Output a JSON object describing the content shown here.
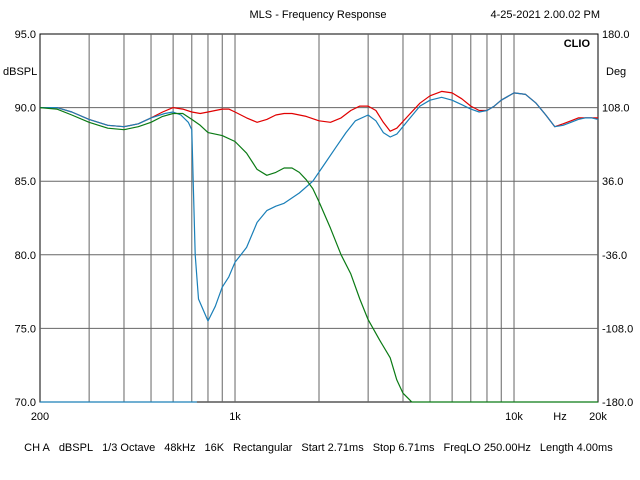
{
  "header": {
    "title": "MLS - Frequency Response",
    "datetime": "4-25-2021 2.00.02 PM",
    "brand": "CLIO"
  },
  "footer": {
    "channel": "CH A",
    "unit": "dBSPL",
    "smoothing": "1/3 Octave",
    "sample_rate": "48kHz",
    "size": "16K",
    "window": "Rectangular",
    "start": "Start 2.71ms",
    "stop": "Stop 6.71ms",
    "freqlo": "FreqLO 250.00Hz",
    "length": "Length 4.00ms"
  },
  "chart_data": {
    "type": "line",
    "xscale": "log",
    "xlim": [
      200,
      20000
    ],
    "ylim": [
      70,
      95
    ],
    "y2lim": [
      -180,
      180
    ],
    "ylabel": "dBSPL",
    "y2label": "Deg",
    "xlabel": "Hz",
    "x_tick_labels": [
      {
        "value": 200,
        "label": "200"
      },
      {
        "value": 1000,
        "label": "1k"
      },
      {
        "value": 10000,
        "label": "10k"
      },
      {
        "value": 20000,
        "label": "20k"
      }
    ],
    "y_tick_labels": [
      "70.0",
      "75.0",
      "80.0",
      "85.0",
      "90.0",
      "95.0"
    ],
    "y2_tick_labels": [
      "-180.0",
      "-108.0",
      "-36.0",
      "36.0",
      "108.0",
      "180.0"
    ],
    "grid": true,
    "series": [
      {
        "color": "#e00000",
        "points": [
          [
            200,
            90
          ],
          [
            230,
            90
          ],
          [
            260,
            89.7
          ],
          [
            300,
            89.2
          ],
          [
            350,
            88.8
          ],
          [
            400,
            88.7
          ],
          [
            450,
            88.9
          ],
          [
            500,
            89.3
          ],
          [
            550,
            89.7
          ],
          [
            600,
            90
          ],
          [
            650,
            89.9
          ],
          [
            700,
            89.7
          ],
          [
            750,
            89.6
          ],
          [
            800,
            89.7
          ],
          [
            850,
            89.8
          ],
          [
            900,
            89.9
          ],
          [
            950,
            89.9
          ],
          [
            1000,
            89.7
          ],
          [
            1100,
            89.3
          ],
          [
            1200,
            89
          ],
          [
            1300,
            89.2
          ],
          [
            1400,
            89.5
          ],
          [
            1500,
            89.6
          ],
          [
            1600,
            89.6
          ],
          [
            1800,
            89.4
          ],
          [
            2000,
            89.1
          ],
          [
            2200,
            89
          ],
          [
            2400,
            89.3
          ],
          [
            2600,
            89.8
          ],
          [
            2800,
            90.1
          ],
          [
            3000,
            90.1
          ],
          [
            3200,
            89.8
          ],
          [
            3400,
            89
          ],
          [
            3600,
            88.4
          ],
          [
            3800,
            88.6
          ],
          [
            4200,
            89.5
          ],
          [
            4600,
            90.3
          ],
          [
            5000,
            90.8
          ],
          [
            5500,
            91.1
          ],
          [
            6000,
            91
          ],
          [
            6500,
            90.6
          ],
          [
            7000,
            90.1
          ],
          [
            7500,
            89.8
          ],
          [
            8000,
            89.8
          ],
          [
            8500,
            90.1
          ],
          [
            9000,
            90.5
          ],
          [
            10000,
            91
          ],
          [
            11000,
            90.9
          ],
          [
            12000,
            90.3
          ],
          [
            13000,
            89.5
          ],
          [
            14000,
            88.7
          ],
          [
            15000,
            88.9
          ],
          [
            16000,
            89.1
          ],
          [
            17000,
            89.3
          ],
          [
            18000,
            89.3
          ],
          [
            19000,
            89.3
          ],
          [
            20000,
            89.3
          ]
        ]
      },
      {
        "color": "#1a7fb8",
        "points": [
          [
            200,
            90
          ],
          [
            230,
            90
          ],
          [
            260,
            89.7
          ],
          [
            300,
            89.2
          ],
          [
            350,
            88.8
          ],
          [
            400,
            88.7
          ],
          [
            450,
            88.9
          ],
          [
            500,
            89.3
          ],
          [
            560,
            89.6
          ],
          [
            600,
            89.7
          ],
          [
            640,
            89.5
          ],
          [
            680,
            89
          ],
          [
            700,
            88.5
          ],
          [
            720,
            80
          ],
          [
            740,
            77
          ],
          [
            800,
            75.5
          ],
          [
            850,
            76.5
          ],
          [
            900,
            77.8
          ],
          [
            950,
            78.5
          ],
          [
            1000,
            79.5
          ],
          [
            1050,
            80
          ],
          [
            1100,
            80.5
          ],
          [
            1200,
            82.2
          ],
          [
            1300,
            83
          ],
          [
            1400,
            83.3
          ],
          [
            1500,
            83.5
          ],
          [
            1700,
            84.2
          ],
          [
            1900,
            85
          ],
          [
            2100,
            86.2
          ],
          [
            2300,
            87.3
          ],
          [
            2500,
            88.3
          ],
          [
            2700,
            89.1
          ],
          [
            3000,
            89.5
          ],
          [
            3200,
            89.1
          ],
          [
            3400,
            88.3
          ],
          [
            3600,
            88
          ],
          [
            3800,
            88.2
          ],
          [
            4200,
            89.2
          ],
          [
            4600,
            90.1
          ],
          [
            5000,
            90.5
          ],
          [
            5500,
            90.7
          ],
          [
            6000,
            90.5
          ],
          [
            6500,
            90.2
          ],
          [
            7000,
            89.9
          ],
          [
            7500,
            89.7
          ],
          [
            8000,
            89.8
          ],
          [
            8500,
            90.1
          ],
          [
            9000,
            90.5
          ],
          [
            10000,
            91
          ],
          [
            11000,
            90.9
          ],
          [
            12000,
            90.3
          ],
          [
            13000,
            89.5
          ],
          [
            14000,
            88.7
          ],
          [
            15000,
            88.8
          ],
          [
            16000,
            89
          ],
          [
            17000,
            89.2
          ],
          [
            18000,
            89.3
          ],
          [
            19000,
            89.3
          ],
          [
            20000,
            89.2
          ]
        ]
      },
      {
        "color": "#0a7a14",
        "points": [
          [
            200,
            90
          ],
          [
            230,
            89.9
          ],
          [
            260,
            89.5
          ],
          [
            300,
            89
          ],
          [
            350,
            88.6
          ],
          [
            400,
            88.5
          ],
          [
            450,
            88.7
          ],
          [
            500,
            89
          ],
          [
            550,
            89.4
          ],
          [
            600,
            89.6
          ],
          [
            650,
            89.6
          ],
          [
            700,
            89.2
          ],
          [
            750,
            88.8
          ],
          [
            800,
            88.3
          ],
          [
            900,
            88.1
          ],
          [
            1000,
            87.7
          ],
          [
            1100,
            86.9
          ],
          [
            1200,
            85.8
          ],
          [
            1300,
            85.4
          ],
          [
            1400,
            85.6
          ],
          [
            1500,
            85.9
          ],
          [
            1600,
            85.9
          ],
          [
            1700,
            85.6
          ],
          [
            1800,
            85.1
          ],
          [
            1900,
            84.5
          ],
          [
            2000,
            83.6
          ],
          [
            2200,
            81.8
          ],
          [
            2400,
            80
          ],
          [
            2600,
            78.7
          ],
          [
            2800,
            77
          ],
          [
            3000,
            75.6
          ],
          [
            3300,
            74.2
          ],
          [
            3600,
            73
          ],
          [
            3800,
            71.5
          ],
          [
            4000,
            70.6
          ],
          [
            4200,
            70.2
          ],
          [
            4300,
            70
          ]
        ]
      },
      {
        "color": "#1a7fb8",
        "points": [
          [
            200,
            70
          ],
          [
            700,
            70
          ],
          [
            730,
            70
          ]
        ]
      },
      {
        "color": "#0a7a14",
        "points": [
          [
            4300,
            70
          ],
          [
            20000,
            70
          ]
        ]
      }
    ]
  }
}
